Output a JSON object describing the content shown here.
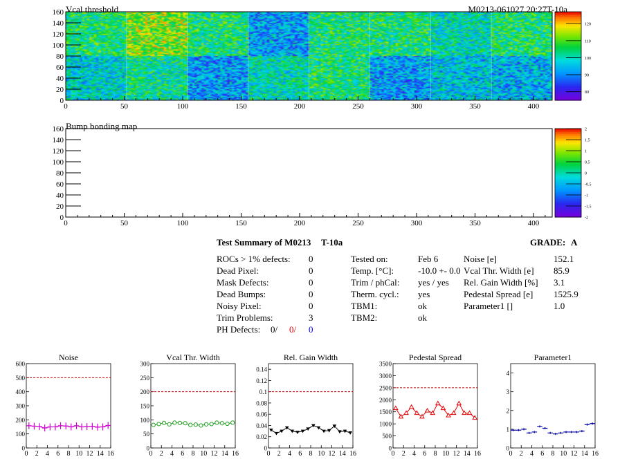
{
  "header": {
    "top_title": "Vcal threshold",
    "module_id": "M0213-061027.20:27T-10a",
    "bump_title": "Bump bonding map"
  },
  "summary": {
    "title": "Test Summary of M0213",
    "temp_tag": "T-10a",
    "grade_label": "GRADE:",
    "grade_value": "A",
    "defects": [
      {
        "label": "ROCs > 1% defects:",
        "value": "0"
      },
      {
        "label": "Dead Pixel:",
        "value": "0"
      },
      {
        "label": "Mask Defects:",
        "value": "0"
      },
      {
        "label": "Dead Bumps:",
        "value": "0"
      },
      {
        "label": "Noisy Pixel:",
        "value": "0"
      },
      {
        "label": "Trim Problems:",
        "value": "3"
      }
    ],
    "ph_defects": {
      "label": "PH Defects:",
      "v1": "0/",
      "v2": "0/",
      "v3": "0"
    },
    "conditions": [
      {
        "label": "Tested on:",
        "value": "Feb 6"
      },
      {
        "label": "Temp. [°C]:",
        "value": "-10.0 +- 0.0"
      },
      {
        "label": "Trim / phCal:",
        "value": "yes / yes"
      },
      {
        "label": "Therm. cycl.:",
        "value": "yes"
      },
      {
        "label": "TBM1:",
        "value": "ok"
      },
      {
        "label": "TBM2:",
        "value": "ok"
      }
    ],
    "results": [
      {
        "label": "Noise [e]",
        "value": "152.1"
      },
      {
        "label": "Vcal Thr. Width [e]",
        "value": "85.9"
      },
      {
        "label": "Rel. Gain Width [%]",
        "value": "3.1"
      },
      {
        "label": "Pedestal Spread [e]",
        "value": "1525.9"
      },
      {
        "label": "Parameter1 []",
        "value": "1.0"
      }
    ]
  },
  "colors": {
    "noise": "#d000d0",
    "vcal_width": "#20a020",
    "gain_width": "#000000",
    "pedestal": "#e00000",
    "parameter1": "#0000a0",
    "reference_line": "#c00000"
  },
  "chart_data": [
    {
      "type": "heatmap",
      "title": "Vcal threshold",
      "xlim": [
        0,
        416
      ],
      "ylim": [
        0,
        160
      ],
      "x_ticks": [
        0,
        50,
        100,
        150,
        200,
        250,
        300,
        350,
        400
      ],
      "y_ticks": [
        0,
        20,
        40,
        60,
        80,
        100,
        120,
        140,
        160
      ],
      "colorbar_ticks": [
        80,
        90,
        100,
        110,
        120
      ],
      "colorbar_range": [
        75,
        127
      ],
      "roc_mean_top": [
        104,
        112,
        104,
        92,
        104,
        104,
        100,
        104
      ],
      "roc_mean_bottom": [
        94,
        96,
        92,
        104,
        100,
        92,
        102,
        98
      ]
    },
    {
      "type": "heatmap",
      "title": "Bump bonding map",
      "xlim": [
        0,
        416
      ],
      "ylim": [
        0,
        160
      ],
      "x_ticks": [
        0,
        50,
        100,
        150,
        200,
        250,
        300,
        350,
        400
      ],
      "y_ticks": [
        0,
        20,
        40,
        60,
        80,
        100,
        120,
        140,
        160
      ],
      "colorbar_ticks": [
        2,
        1.5,
        1,
        0.5,
        0,
        -0.5,
        -1,
        -1.5,
        -2
      ],
      "colorbar_range": [
        -2,
        2
      ]
    },
    {
      "type": "line",
      "title": "Noise",
      "x": [
        0,
        1,
        2,
        3,
        4,
        5,
        6,
        7,
        8,
        9,
        10,
        11,
        12,
        13,
        14,
        15
      ],
      "values": [
        158,
        155,
        152,
        142,
        150,
        150,
        158,
        156,
        150,
        158,
        150,
        152,
        154,
        148,
        150,
        160
      ],
      "reference": 500,
      "xlim": [
        0,
        16
      ],
      "ylim": [
        0,
        600
      ],
      "x_ticks": [
        0,
        2,
        4,
        6,
        8,
        10,
        12,
        14,
        16
      ],
      "y_ticks": [
        0,
        100,
        200,
        300,
        400,
        500,
        600
      ],
      "marker": "cross"
    },
    {
      "type": "line",
      "title": "Vcal Thr. Width",
      "x": [
        0,
        1,
        2,
        3,
        4,
        5,
        6,
        7,
        8,
        9,
        10,
        11,
        12,
        13,
        14,
        15
      ],
      "values": [
        82,
        85,
        89,
        84,
        90,
        89,
        88,
        82,
        83,
        80,
        84,
        85,
        90,
        88,
        86,
        90
      ],
      "reference": 200,
      "xlim": [
        0,
        16
      ],
      "ylim": [
        0,
        300
      ],
      "x_ticks": [
        0,
        2,
        4,
        6,
        8,
        10,
        12,
        14,
        16
      ],
      "y_ticks": [
        0,
        50,
        100,
        150,
        200,
        250,
        300
      ],
      "marker": "circle"
    },
    {
      "type": "line",
      "title": "Rel. Gain Width",
      "x": [
        0,
        1,
        2,
        3,
        4,
        5,
        6,
        7,
        8,
        9,
        10,
        11,
        12,
        13,
        14,
        15
      ],
      "values": [
        0.032,
        0.026,
        0.03,
        0.036,
        0.03,
        0.028,
        0.03,
        0.034,
        0.04,
        0.036,
        0.03,
        0.031,
        0.039,
        0.029,
        0.03,
        0.027
      ],
      "reference": 0.1,
      "xlim": [
        0,
        16
      ],
      "ylim": [
        0,
        0.15
      ],
      "x_ticks": [
        0,
        2,
        4,
        6,
        8,
        10,
        12,
        14,
        16
      ],
      "y_ticks": [
        0,
        0.02,
        0.04,
        0.06,
        0.08,
        0.1,
        0.12,
        0.14
      ],
      "marker": "triangle-down"
    },
    {
      "type": "line",
      "title": "Pedestal Spread",
      "x": [
        0,
        1,
        2,
        3,
        4,
        5,
        6,
        7,
        8,
        9,
        10,
        11,
        12,
        13,
        14,
        15
      ],
      "values": [
        1650,
        1300,
        1450,
        1700,
        1450,
        1300,
        1550,
        1450,
        1850,
        1650,
        1350,
        1450,
        1850,
        1450,
        1450,
        1250
      ],
      "reference": 2500,
      "xlim": [
        0,
        16
      ],
      "ylim": [
        0,
        3500
      ],
      "x_ticks": [
        0,
        2,
        4,
        6,
        8,
        10,
        12,
        14,
        16
      ],
      "y_ticks": [
        0,
        500,
        1000,
        1500,
        2000,
        2500,
        3000,
        3500
      ],
      "marker": "triangle-up"
    },
    {
      "type": "scatter",
      "title": "Parameter1",
      "x": [
        0,
        1,
        2,
        3,
        4,
        5,
        6,
        7,
        8,
        9,
        10,
        11,
        12,
        13,
        14,
        15
      ],
      "values": [
        0.95,
        0.95,
        1.0,
        0.8,
        0.85,
        1.15,
        1.05,
        0.8,
        0.75,
        0.8,
        0.85,
        0.85,
        0.85,
        0.9,
        1.25,
        1.3
      ],
      "xlim": [
        0,
        16
      ],
      "ylim": [
        0,
        4.5
      ],
      "x_ticks": [
        0,
        2,
        4,
        6,
        8,
        10,
        12,
        14,
        16
      ],
      "y_ticks": [
        0,
        1,
        2,
        3,
        4
      ],
      "marker": "hbar"
    }
  ]
}
